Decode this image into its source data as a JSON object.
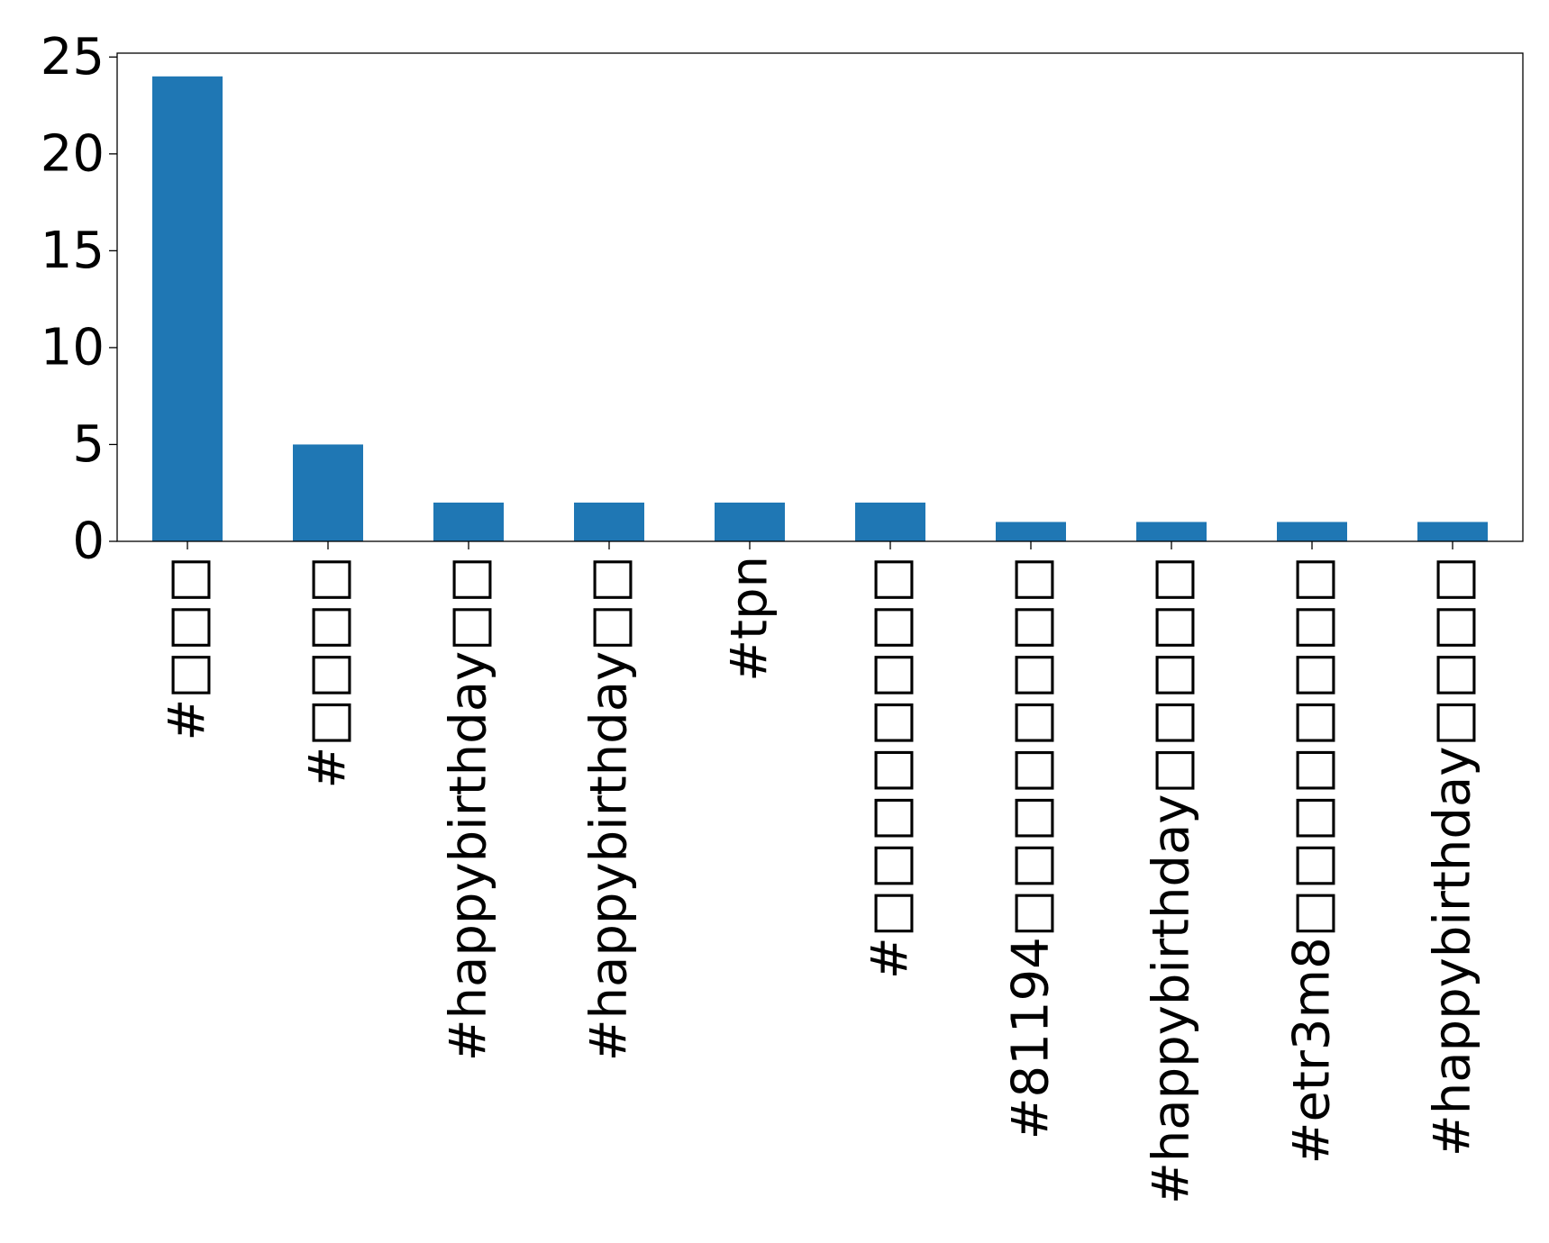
{
  "chart_data": {
    "type": "bar",
    "title": "",
    "xlabel": "",
    "ylabel": "",
    "categories": [
      "#□□□",
      "#□□□□",
      "#happybirthday□□",
      "#happybirthday□□",
      "#tpn",
      "#□□□□□□□□",
      "#81194□□□□□□□□",
      "#happybirthday□□□□□",
      "#etr3m8□□□□□□□□",
      "#happybirthday□□□□"
    ],
    "values": [
      24,
      5,
      2,
      2,
      2,
      2,
      1,
      1,
      1,
      1
    ],
    "ylim": [
      0,
      25.2
    ],
    "yticks": [
      "0",
      "5",
      "10",
      "15",
      "20",
      "25"
    ],
    "bar_color": "#1f77b4",
    "grid": false,
    "legend": "none"
  }
}
